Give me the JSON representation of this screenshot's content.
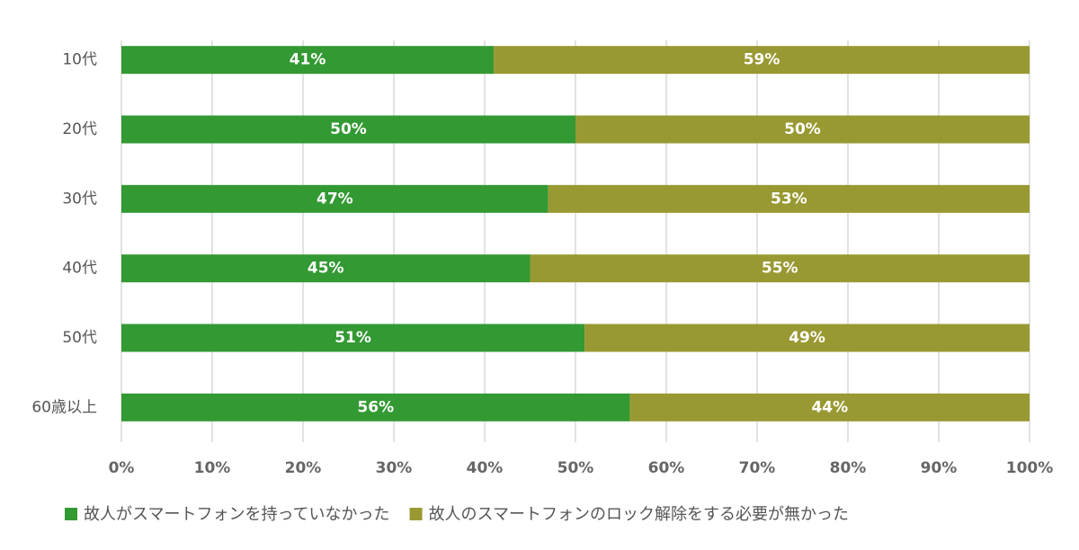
{
  "chart_data": {
    "type": "stacked-bar-horizontal",
    "categories": [
      "10代",
      "20代",
      "30代",
      "40代",
      "50代",
      "60歳以上"
    ],
    "series": [
      {
        "name": "故人がスマートフォンを持っていなかった",
        "color": "#339933",
        "values": [
          41,
          50,
          47,
          45,
          51,
          56
        ],
        "value_labels": [
          "41%",
          "50%",
          "47%",
          "45%",
          "51%",
          "56%"
        ]
      },
      {
        "name": "故人のスマートフォンのロック解除をする必要が無かった",
        "color": "#999933",
        "values": [
          59,
          50,
          53,
          55,
          49,
          44
        ],
        "value_labels": [
          "59%",
          "50%",
          "53%",
          "55%",
          "49%",
          "44%"
        ]
      }
    ],
    "xlim": [
      0,
      100
    ],
    "xticks": [
      {
        "value": 0,
        "label": "0%"
      },
      {
        "value": 10,
        "label": "10%"
      },
      {
        "value": 20,
        "label": "20%"
      },
      {
        "value": 30,
        "label": "30%"
      },
      {
        "value": 40,
        "label": "40%"
      },
      {
        "value": 50,
        "label": "50%"
      },
      {
        "value": 60,
        "label": "60%"
      },
      {
        "value": 70,
        "label": "70%"
      },
      {
        "value": 80,
        "label": "80%"
      },
      {
        "value": 90,
        "label": "90%"
      },
      {
        "value": 100,
        "label": "100%"
      }
    ],
    "grid": true,
    "legend": "bottom"
  }
}
